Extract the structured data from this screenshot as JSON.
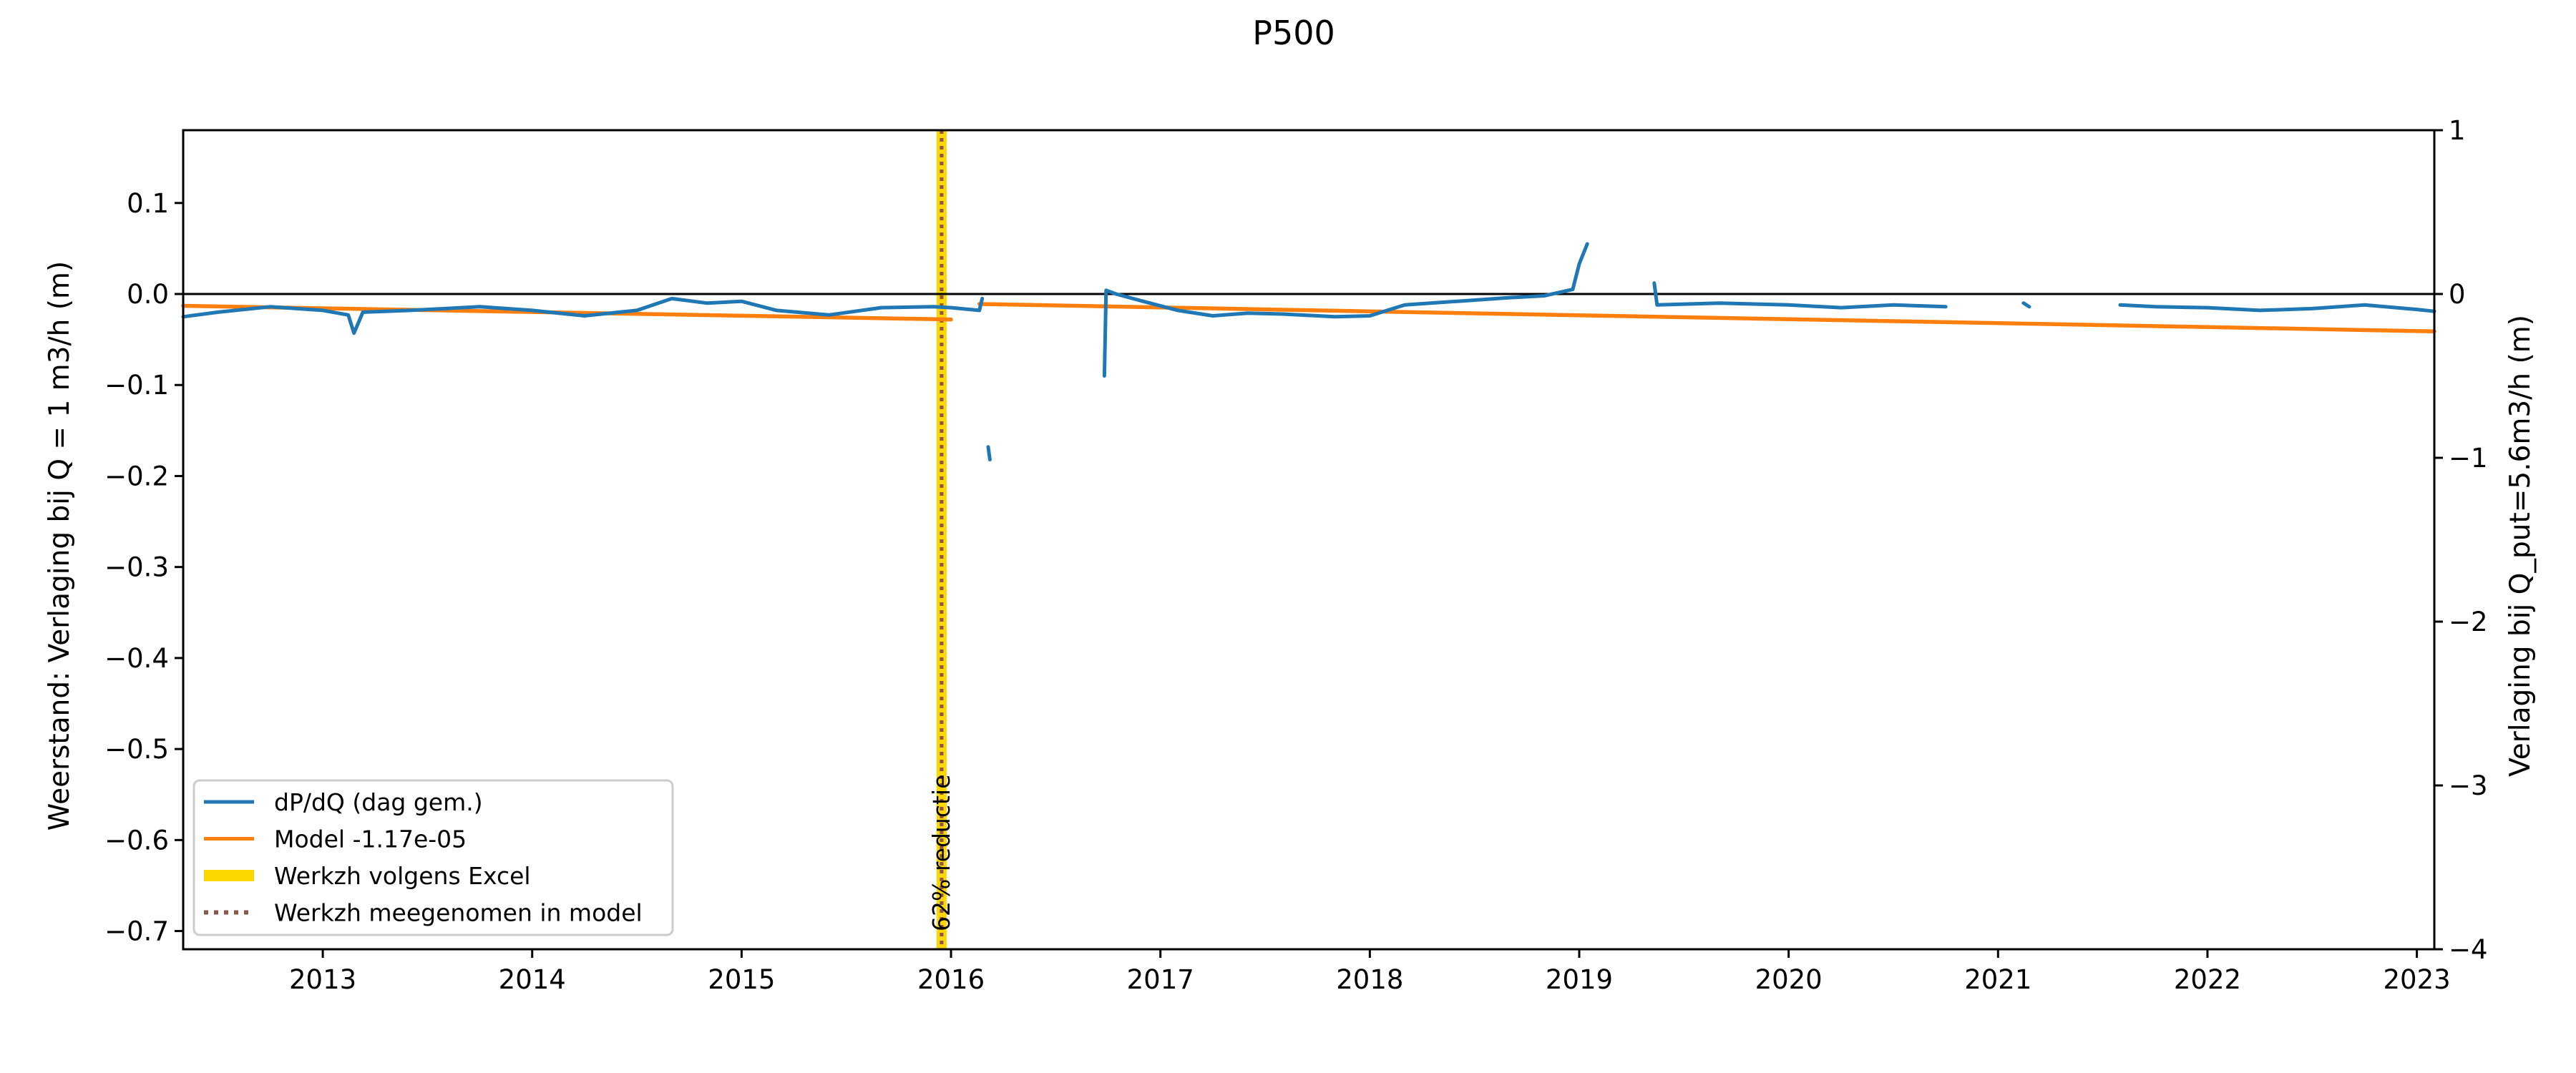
{
  "chart_data": {
    "type": "line",
    "title": "P500",
    "ylabel": "Weerstand: Verlaging bij Q = 1 m3/h (m)",
    "ylabel_right": "Verlaging bij Q_put=5.6m3/h (m)",
    "xlim": [
      "2012-05-01",
      "2023-02-01"
    ],
    "ylim": [
      -0.72,
      0.18
    ],
    "ylim_right": [
      -4,
      1
    ],
    "x_ticks": [
      "2013",
      "2014",
      "2015",
      "2016",
      "2017",
      "2018",
      "2019",
      "2020",
      "2021",
      "2022",
      "2023"
    ],
    "y_ticks": [
      "0.1",
      "0.0",
      "−0.1",
      "−0.2",
      "−0.3",
      "−0.4",
      "−0.5",
      "−0.6",
      "−0.7"
    ],
    "y_ticks_right": [
      "1",
      "0",
      "−1",
      "−2",
      "−3",
      "−4"
    ],
    "grid": false,
    "legend_position": "lower-left",
    "horizontal_reference_line": 0.0,
    "series": [
      {
        "name": "dP/dQ (dag gem.)",
        "color": "#1f77b4",
        "segments": [
          [
            [
              "2012-05-01",
              -0.025
            ],
            [
              "2012-07-01",
              -0.02
            ],
            [
              "2012-10-01",
              -0.014
            ],
            [
              "2013-01-01",
              -0.018
            ],
            [
              "2013-02-15",
              -0.023
            ],
            [
              "2013-02-25",
              -0.043
            ],
            [
              "2013-03-10",
              -0.02
            ],
            [
              "2013-06-01",
              -0.018
            ],
            [
              "2013-10-01",
              -0.014
            ],
            [
              "2014-01-01",
              -0.018
            ],
            [
              "2014-04-01",
              -0.024
            ],
            [
              "2014-07-01",
              -0.018
            ],
            [
              "2014-09-01",
              -0.005
            ],
            [
              "2014-11-01",
              -0.01
            ],
            [
              "2015-01-01",
              -0.008
            ],
            [
              "2015-03-01",
              -0.018
            ],
            [
              "2015-06-01",
              -0.023
            ],
            [
              "2015-09-01",
              -0.015
            ],
            [
              "2015-12-01",
              -0.014
            ],
            [
              "2016-01-01",
              -0.015
            ],
            [
              "2016-02-20",
              -0.018
            ],
            [
              "2016-02-25",
              -0.005
            ]
          ],
          [
            [
              "2016-03-05",
              -0.168
            ],
            [
              "2016-03-08",
              -0.182
            ]
          ],
          [
            [
              "2016-09-25",
              -0.09
            ],
            [
              "2016-09-28",
              0.004
            ],
            [
              "2016-10-15",
              0.0
            ],
            [
              "2016-12-01",
              -0.008
            ],
            [
              "2017-02-01",
              -0.018
            ],
            [
              "2017-04-01",
              -0.024
            ],
            [
              "2017-06-01",
              -0.021
            ],
            [
              "2017-08-01",
              -0.022
            ],
            [
              "2017-11-01",
              -0.025
            ],
            [
              "2018-01-01",
              -0.024
            ],
            [
              "2018-03-01",
              -0.012
            ],
            [
              "2018-06-01",
              -0.008
            ],
            [
              "2018-09-01",
              -0.004
            ],
            [
              "2018-11-01",
              -0.002
            ],
            [
              "2018-12-20",
              0.005
            ],
            [
              "2019-01-01",
              0.033
            ],
            [
              "2019-01-15",
              0.055
            ]
          ],
          [
            [
              "2019-05-10",
              0.012
            ],
            [
              "2019-05-15",
              -0.012
            ],
            [
              "2019-09-01",
              -0.01
            ],
            [
              "2020-01-01",
              -0.012
            ],
            [
              "2020-04-01",
              -0.015
            ],
            [
              "2020-07-01",
              -0.012
            ],
            [
              "2020-10-01",
              -0.014
            ]
          ],
          [
            [
              "2021-02-15",
              -0.01
            ],
            [
              "2021-02-25",
              -0.014
            ]
          ],
          [
            [
              "2021-08-01",
              -0.012
            ],
            [
              "2021-10-01",
              -0.014
            ],
            [
              "2022-01-01",
              -0.015
            ],
            [
              "2022-04-01",
              -0.018
            ],
            [
              "2022-07-01",
              -0.016
            ],
            [
              "2022-10-01",
              -0.012
            ],
            [
              "2023-01-01",
              -0.017
            ],
            [
              "2023-02-01",
              -0.019
            ]
          ]
        ]
      },
      {
        "name": "Model -1.17e-05",
        "color": "#ff7f0e",
        "segments": [
          [
            [
              "2012-05-01",
              -0.013
            ],
            [
              "2016-01-01",
              -0.028
            ]
          ],
          [
            [
              "2016-02-20",
              -0.011
            ],
            [
              "2023-02-01",
              -0.041
            ]
          ]
        ]
      }
    ],
    "events": [
      {
        "date": "2015-12-15",
        "label": "62% reductie"
      }
    ],
    "legend": [
      {
        "label": "dP/dQ (dag gem.)",
        "color": "#1f77b4",
        "style": "solid"
      },
      {
        "label": "Model -1.17e-05",
        "color": "#ff7f0e",
        "style": "solid"
      },
      {
        "label": "Werkzh volgens Excel",
        "color": "#ffd700",
        "style": "band"
      },
      {
        "label": "Werkzh meegenomen in model",
        "color": "#8c564b",
        "style": "dotted"
      }
    ]
  }
}
